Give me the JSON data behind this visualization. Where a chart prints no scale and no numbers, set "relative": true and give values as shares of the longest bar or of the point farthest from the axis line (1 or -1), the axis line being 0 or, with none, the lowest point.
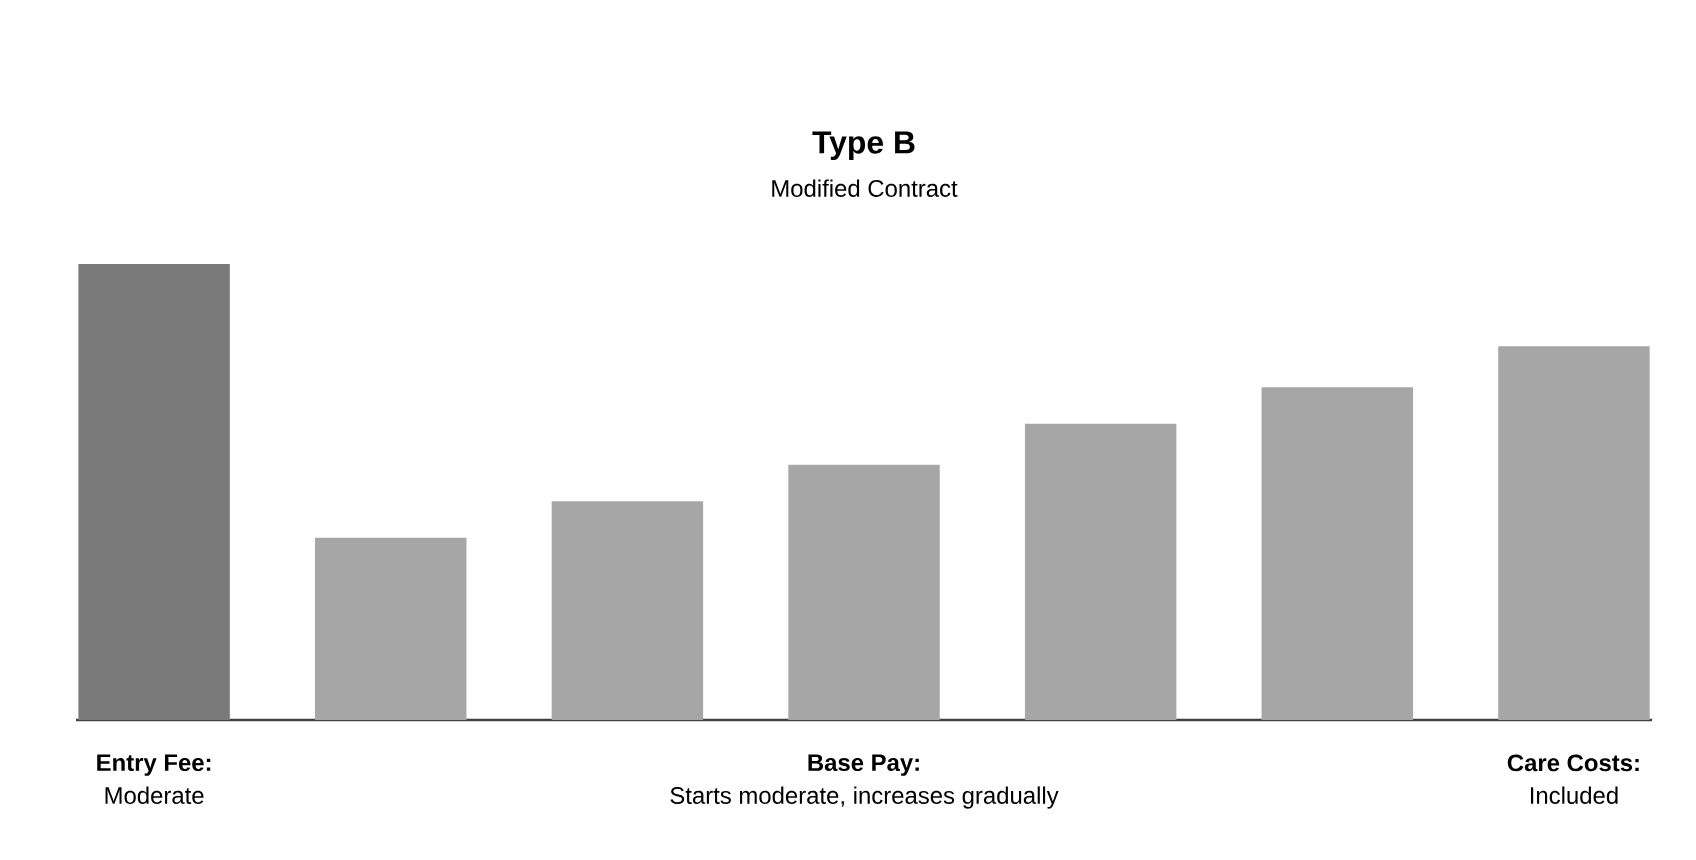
{
  "chart_data": {
    "type": "bar",
    "title": "Type B",
    "subtitle": "Modified Contract",
    "categories": [
      null,
      null,
      null,
      null,
      null,
      null,
      null
    ],
    "values": [
      1,
      0.4,
      0.48,
      0.56,
      0.65,
      0.73,
      0.82
    ],
    "colors": [
      "#7a7a7a",
      "#a6a6a6",
      "#a6a6a6",
      "#a6a6a6",
      "#a6a6a6",
      "#a6a6a6",
      "#a6a6a6"
    ],
    "relative": true,
    "annotations": [
      "Entry Fee:",
      "Moderate",
      "Base Pay:",
      "Starts moderate, increases gradually",
      "Care Costs:",
      "Included"
    ]
  }
}
